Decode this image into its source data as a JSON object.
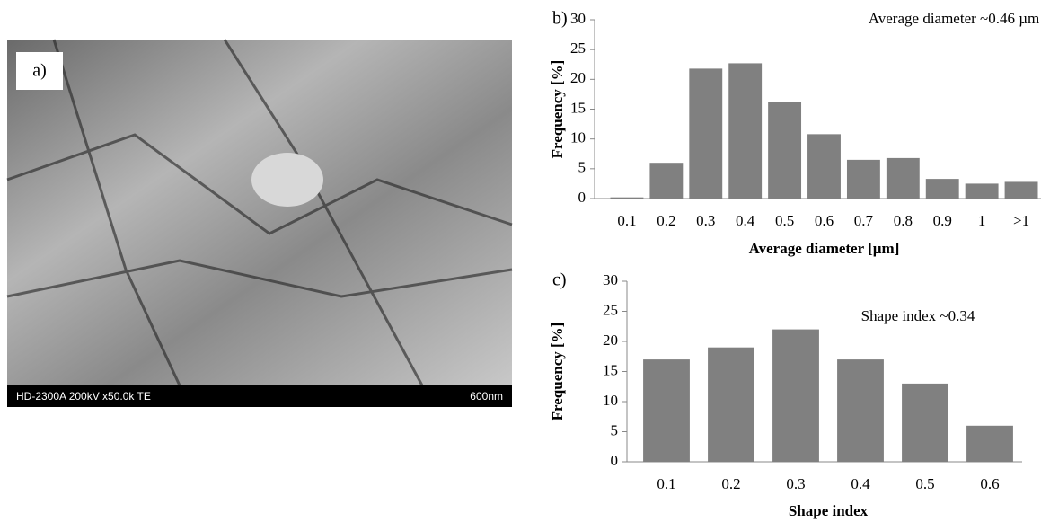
{
  "micrograph": {
    "label": "a)",
    "caption": "HD-2300A 200kV x50.0k TE",
    "scale_label": "600nm"
  },
  "chart_data": [
    {
      "type": "bar",
      "panel_label": "b)",
      "annotation": "Average diameter ~0.46 µm",
      "x_label": "Average diameter [µm]",
      "y_label": "Frequency [%]",
      "categories": [
        "0.1",
        "0.2",
        "0.3",
        "0.4",
        "0.5",
        "0.6",
        "0.7",
        "0.8",
        "0.9",
        "1",
        ">1"
      ],
      "values": [
        0.2,
        6,
        21.8,
        22.7,
        16.2,
        10.8,
        6.5,
        6.8,
        3.3,
        2.5,
        2.8
      ],
      "color": "#808080",
      "ylim": [
        0,
        30
      ],
      "yticks": [
        0,
        5,
        10,
        15,
        20,
        25,
        30
      ],
      "grid": false
    },
    {
      "type": "bar",
      "panel_label": "c)",
      "annotation": "Shape index ~0.34",
      "x_label": "Shape index",
      "y_label": "Frequency [%]",
      "categories": [
        "0.1",
        "0.2",
        "0.3",
        "0.4",
        "0.5",
        "0.6"
      ],
      "values": [
        17,
        19,
        22,
        17,
        13,
        6
      ],
      "color": "#808080",
      "ylim": [
        0,
        30
      ],
      "yticks": [
        0,
        5,
        10,
        15,
        20,
        25,
        30
      ],
      "grid": false
    }
  ]
}
